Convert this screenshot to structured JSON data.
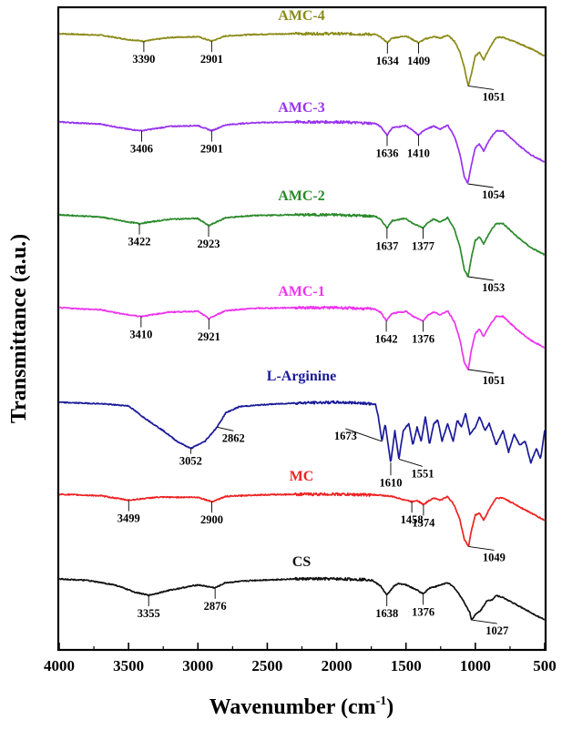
{
  "chart_data": {
    "type": "line",
    "xlabel": "Wavenumber (cm",
    "xlabel_sup": "-1",
    "xlabel_close": ")",
    "ylabel": "Transmittance (a.u.)",
    "xlim": [
      4000,
      500
    ],
    "x_ticks": [
      4000,
      3500,
      3000,
      2500,
      2000,
      1500,
      1000,
      500
    ],
    "grid": false,
    "series": [
      {
        "name": "AMC-4",
        "color": "#8b8b1a",
        "points": [
          [
            4000,
            0.0
          ],
          [
            3700,
            -0.02
          ],
          [
            3500,
            -0.08
          ],
          [
            3390,
            -0.1
          ],
          [
            3200,
            -0.05
          ],
          [
            3000,
            -0.04
          ],
          [
            2901,
            -0.1
          ],
          [
            2800,
            -0.03
          ],
          [
            2600,
            -0.01
          ],
          [
            2300,
            0.0
          ],
          [
            2000,
            0.0
          ],
          [
            1720,
            -0.01
          ],
          [
            1680,
            -0.05
          ],
          [
            1634,
            -0.12
          ],
          [
            1600,
            -0.06
          ],
          [
            1500,
            -0.03
          ],
          [
            1450,
            -0.08
          ],
          [
            1409,
            -0.12
          ],
          [
            1360,
            -0.07
          ],
          [
            1300,
            -0.04
          ],
          [
            1250,
            -0.06
          ],
          [
            1200,
            -0.02
          ],
          [
            1150,
            -0.1
          ],
          [
            1110,
            -0.25
          ],
          [
            1080,
            -0.45
          ],
          [
            1051,
            -0.7
          ],
          [
            1030,
            -0.55
          ],
          [
            1000,
            -0.3
          ],
          [
            970,
            -0.25
          ],
          [
            940,
            -0.35
          ],
          [
            900,
            -0.2
          ],
          [
            850,
            -0.05
          ],
          [
            800,
            -0.05
          ],
          [
            700,
            -0.12
          ],
          [
            600,
            -0.2
          ],
          [
            500,
            -0.3
          ]
        ],
        "peaks": [
          3390,
          2901,
          1634,
          1409,
          1051
        ]
      },
      {
        "name": "AMC-3",
        "color": "#9933ee",
        "points": [
          [
            4000,
            0.0
          ],
          [
            3700,
            -0.03
          ],
          [
            3500,
            -0.1
          ],
          [
            3406,
            -0.12
          ],
          [
            3200,
            -0.06
          ],
          [
            3000,
            -0.05
          ],
          [
            2901,
            -0.12
          ],
          [
            2800,
            -0.04
          ],
          [
            2600,
            -0.01
          ],
          [
            2300,
            0.0
          ],
          [
            2000,
            0.0
          ],
          [
            1720,
            -0.02
          ],
          [
            1680,
            -0.07
          ],
          [
            1636,
            -0.18
          ],
          [
            1600,
            -0.08
          ],
          [
            1500,
            -0.05
          ],
          [
            1450,
            -0.12
          ],
          [
            1410,
            -0.18
          ],
          [
            1360,
            -0.1
          ],
          [
            1300,
            -0.06
          ],
          [
            1250,
            -0.1
          ],
          [
            1200,
            -0.04
          ],
          [
            1150,
            -0.2
          ],
          [
            1110,
            -0.45
          ],
          [
            1080,
            -0.75
          ],
          [
            1054,
            -0.85
          ],
          [
            1030,
            -0.6
          ],
          [
            1000,
            -0.35
          ],
          [
            970,
            -0.3
          ],
          [
            940,
            -0.4
          ],
          [
            900,
            -0.25
          ],
          [
            850,
            -0.12
          ],
          [
            800,
            -0.12
          ],
          [
            700,
            -0.3
          ],
          [
            600,
            -0.45
          ],
          [
            500,
            -0.55
          ]
        ],
        "peaks": [
          3406,
          2901,
          1636,
          1410,
          1054
        ]
      },
      {
        "name": "AMC-2",
        "color": "#2a8a2a",
        "points": [
          [
            4000,
            0.0
          ],
          [
            3700,
            -0.03
          ],
          [
            3500,
            -0.1
          ],
          [
            3422,
            -0.12
          ],
          [
            3200,
            -0.06
          ],
          [
            3000,
            -0.05
          ],
          [
            2923,
            -0.15
          ],
          [
            2800,
            -0.04
          ],
          [
            2600,
            -0.01
          ],
          [
            2300,
            0.0
          ],
          [
            2000,
            0.0
          ],
          [
            1720,
            -0.02
          ],
          [
            1680,
            -0.07
          ],
          [
            1637,
            -0.18
          ],
          [
            1600,
            -0.08
          ],
          [
            1500,
            -0.05
          ],
          [
            1450,
            -0.12
          ],
          [
            1377,
            -0.18
          ],
          [
            1340,
            -0.1
          ],
          [
            1300,
            -0.06
          ],
          [
            1250,
            -0.1
          ],
          [
            1200,
            -0.04
          ],
          [
            1150,
            -0.2
          ],
          [
            1110,
            -0.45
          ],
          [
            1080,
            -0.75
          ],
          [
            1053,
            -0.85
          ],
          [
            1030,
            -0.6
          ],
          [
            1000,
            -0.35
          ],
          [
            970,
            -0.3
          ],
          [
            940,
            -0.4
          ],
          [
            900,
            -0.25
          ],
          [
            850,
            -0.12
          ],
          [
            800,
            -0.12
          ],
          [
            700,
            -0.3
          ],
          [
            600,
            -0.45
          ],
          [
            500,
            -0.55
          ]
        ],
        "peaks": [
          3422,
          2923,
          1637,
          1377,
          1053
        ]
      },
      {
        "name": "AMC-1",
        "color": "#ee33ee",
        "points": [
          [
            4000,
            0.0
          ],
          [
            3700,
            -0.03
          ],
          [
            3500,
            -0.1
          ],
          [
            3410,
            -0.12
          ],
          [
            3200,
            -0.06
          ],
          [
            3000,
            -0.05
          ],
          [
            2921,
            -0.15
          ],
          [
            2800,
            -0.04
          ],
          [
            2600,
            -0.01
          ],
          [
            2300,
            0.0
          ],
          [
            2000,
            0.0
          ],
          [
            1720,
            -0.02
          ],
          [
            1680,
            -0.07
          ],
          [
            1642,
            -0.18
          ],
          [
            1600,
            -0.08
          ],
          [
            1500,
            -0.05
          ],
          [
            1450,
            -0.12
          ],
          [
            1376,
            -0.18
          ],
          [
            1340,
            -0.1
          ],
          [
            1300,
            -0.06
          ],
          [
            1250,
            -0.1
          ],
          [
            1200,
            -0.04
          ],
          [
            1150,
            -0.2
          ],
          [
            1110,
            -0.45
          ],
          [
            1080,
            -0.75
          ],
          [
            1051,
            -0.85
          ],
          [
            1030,
            -0.6
          ],
          [
            1000,
            -0.35
          ],
          [
            970,
            -0.3
          ],
          [
            940,
            -0.4
          ],
          [
            900,
            -0.25
          ],
          [
            850,
            -0.12
          ],
          [
            800,
            -0.12
          ],
          [
            700,
            -0.3
          ],
          [
            600,
            -0.45
          ],
          [
            500,
            -0.55
          ]
        ],
        "peaks": [
          3410,
          2921,
          1642,
          1376,
          1051
        ]
      },
      {
        "name": "L-Arginine",
        "color": "#1a1a99",
        "points": [
          [
            4000,
            0.0
          ],
          [
            3700,
            -0.02
          ],
          [
            3500,
            -0.05
          ],
          [
            3400,
            -0.2
          ],
          [
            3250,
            -0.4
          ],
          [
            3150,
            -0.55
          ],
          [
            3052,
            -0.65
          ],
          [
            2950,
            -0.55
          ],
          [
            2862,
            -0.35
          ],
          [
            2800,
            -0.15
          ],
          [
            2700,
            -0.06
          ],
          [
            2500,
            -0.03
          ],
          [
            2300,
            -0.01
          ],
          [
            2000,
            0.0
          ],
          [
            1800,
            -0.01
          ],
          [
            1720,
            -0.03
          ],
          [
            1700,
            -0.2
          ],
          [
            1673,
            -0.55
          ],
          [
            1650,
            -0.3
          ],
          [
            1610,
            -0.85
          ],
          [
            1580,
            -0.4
          ],
          [
            1551,
            -0.8
          ],
          [
            1520,
            -0.4
          ],
          [
            1480,
            -0.3
          ],
          [
            1450,
            -0.6
          ],
          [
            1420,
            -0.35
          ],
          [
            1390,
            -0.55
          ],
          [
            1360,
            -0.2
          ],
          [
            1330,
            -0.6
          ],
          [
            1300,
            -0.3
          ],
          [
            1270,
            -0.25
          ],
          [
            1240,
            -0.55
          ],
          [
            1200,
            -0.3
          ],
          [
            1160,
            -0.55
          ],
          [
            1130,
            -0.25
          ],
          [
            1100,
            -0.35
          ],
          [
            1070,
            -0.15
          ],
          [
            1040,
            -0.45
          ],
          [
            1000,
            -0.35
          ],
          [
            970,
            -0.2
          ],
          [
            930,
            -0.4
          ],
          [
            900,
            -0.3
          ],
          [
            850,
            -0.6
          ],
          [
            800,
            -0.4
          ],
          [
            760,
            -0.7
          ],
          [
            720,
            -0.45
          ],
          [
            680,
            -0.6
          ],
          [
            640,
            -0.55
          ],
          [
            600,
            -0.85
          ],
          [
            560,
            -0.65
          ],
          [
            530,
            -0.8
          ],
          [
            500,
            -0.4
          ]
        ],
        "peaks": [
          3052,
          2862,
          1673,
          1610,
          1551
        ]
      },
      {
        "name": "MC",
        "color": "#ee2222",
        "points": [
          [
            4000,
            0.0
          ],
          [
            3700,
            -0.02
          ],
          [
            3600,
            -0.05
          ],
          [
            3499,
            -0.08
          ],
          [
            3300,
            -0.04
          ],
          [
            3000,
            -0.04
          ],
          [
            2900,
            -0.1
          ],
          [
            2800,
            -0.03
          ],
          [
            2600,
            -0.01
          ],
          [
            2300,
            0.0
          ],
          [
            2000,
            0.0
          ],
          [
            1700,
            -0.01
          ],
          [
            1600,
            -0.03
          ],
          [
            1458,
            -0.1
          ],
          [
            1420,
            -0.08
          ],
          [
            1374,
            -0.14
          ],
          [
            1330,
            -0.08
          ],
          [
            1300,
            -0.05
          ],
          [
            1250,
            -0.08
          ],
          [
            1200,
            -0.03
          ],
          [
            1150,
            -0.15
          ],
          [
            1110,
            -0.35
          ],
          [
            1080,
            -0.6
          ],
          [
            1049,
            -0.7
          ],
          [
            1030,
            -0.5
          ],
          [
            1000,
            -0.28
          ],
          [
            970,
            -0.25
          ],
          [
            940,
            -0.35
          ],
          [
            900,
            -0.2
          ],
          [
            850,
            -0.05
          ],
          [
            800,
            -0.05
          ],
          [
            700,
            -0.15
          ],
          [
            600,
            -0.25
          ],
          [
            500,
            -0.35
          ]
        ],
        "peaks": [
          3499,
          2900,
          1458,
          1374,
          1049
        ]
      },
      {
        "name": "CS",
        "color": "#111111",
        "points": [
          [
            4000,
            0.0
          ],
          [
            3800,
            -0.02
          ],
          [
            3600,
            -0.08
          ],
          [
            3450,
            -0.18
          ],
          [
            3355,
            -0.22
          ],
          [
            3200,
            -0.15
          ],
          [
            3000,
            -0.08
          ],
          [
            2876,
            -0.12
          ],
          [
            2800,
            -0.05
          ],
          [
            2600,
            -0.02
          ],
          [
            2300,
            0.0
          ],
          [
            2000,
            0.0
          ],
          [
            1750,
            -0.01
          ],
          [
            1680,
            -0.1
          ],
          [
            1638,
            -0.22
          ],
          [
            1590,
            -0.1
          ],
          [
            1550,
            -0.06
          ],
          [
            1500,
            -0.08
          ],
          [
            1420,
            -0.15
          ],
          [
            1376,
            -0.2
          ],
          [
            1330,
            -0.12
          ],
          [
            1280,
            -0.1
          ],
          [
            1250,
            -0.08
          ],
          [
            1200,
            -0.05
          ],
          [
            1150,
            -0.12
          ],
          [
            1100,
            -0.25
          ],
          [
            1070,
            -0.35
          ],
          [
            1040,
            -0.45
          ],
          [
            1027,
            -0.55
          ],
          [
            1000,
            -0.48
          ],
          [
            960,
            -0.42
          ],
          [
            920,
            -0.3
          ],
          [
            880,
            -0.28
          ],
          [
            850,
            -0.22
          ],
          [
            800,
            -0.25
          ],
          [
            700,
            -0.35
          ],
          [
            600,
            -0.45
          ],
          [
            500,
            -0.55
          ]
        ],
        "peaks": [
          3355,
          2876,
          1638,
          1376,
          1027
        ]
      }
    ]
  }
}
